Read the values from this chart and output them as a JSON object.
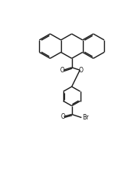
{
  "bg_color": "#ffffff",
  "line_color": "#1a1a1a",
  "line_width": 1.0,
  "figsize": [
    1.79,
    2.29
  ],
  "dpi": 100,
  "xlim": [
    -1.0,
    9.0
  ],
  "ylim": [
    -0.5,
    12.5
  ]
}
